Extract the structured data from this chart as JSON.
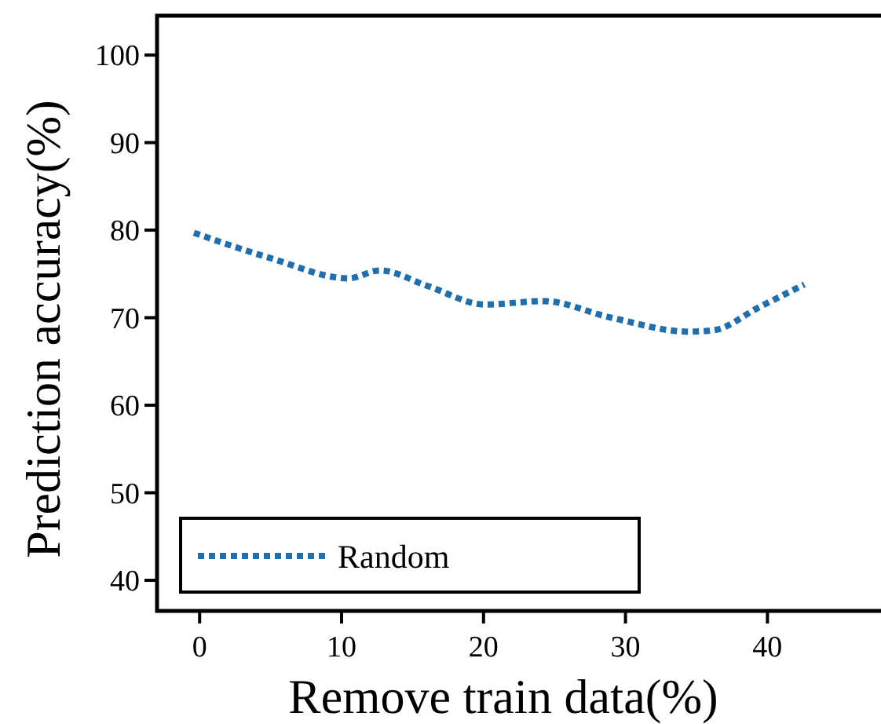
{
  "chart_data": {
    "type": "line",
    "xlabel": "Remove train data(%)",
    "ylabel": "Prediction accuracy(%)",
    "xlim": [
      -3,
      48
    ],
    "xticks": [
      0,
      10,
      20,
      30,
      40
    ],
    "ylim": [
      36.5,
      104.5
    ],
    "yticks": [
      40,
      50,
      60,
      70,
      80,
      90,
      100
    ],
    "legend": "bottom left",
    "line_style": "dotted",
    "marker": "none",
    "grid": false,
    "series": [
      {
        "name": "Random",
        "color": "#1f6fae",
        "x": [
          -0.4,
          5.0,
          10.5,
          12.7,
          16.1,
          20.1,
          24.2,
          29.0,
          34.5,
          36.3,
          39.3,
          42.6
        ],
        "values": [
          79.7,
          76.8,
          74.5,
          75.4,
          73.6,
          71.5,
          71.9,
          70.0,
          68.4,
          68.6,
          71.1,
          73.8
        ]
      }
    ]
  }
}
